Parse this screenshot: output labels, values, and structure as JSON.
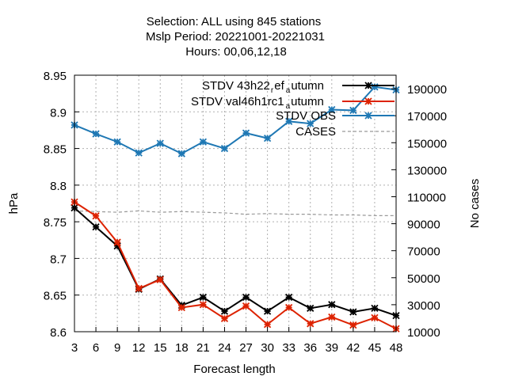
{
  "chart_data": {
    "type": "line",
    "title_lines": [
      "Selection: ALL using   845 stations",
      "Mslp   Period: 20221001-20221031",
      "Hours:  00,06,12,18"
    ],
    "xlabel": "Forecast length",
    "ylabel": "hPa",
    "y2label": "No cases",
    "x": [
      3,
      6,
      9,
      12,
      15,
      18,
      21,
      24,
      27,
      30,
      33,
      36,
      39,
      42,
      45,
      48
    ],
    "xlim": [
      3,
      48
    ],
    "ylim": [
      8.6,
      8.95
    ],
    "y2lim": [
      10000,
      200000
    ],
    "yticks": [
      "8.6",
      "8.65",
      "8.7",
      "8.75",
      "8.8",
      "8.85",
      "8.9",
      "8.95"
    ],
    "y2ticks": [
      "10000",
      "30000",
      "50000",
      "70000",
      "90000",
      "110000",
      "130000",
      "150000",
      "170000",
      "190000"
    ],
    "grid": true,
    "legend_position": "top-right",
    "series": [
      {
        "name": "STDV 43h22_ref_autumn",
        "legend_label": "STDV 43h22",
        "legend_sub1": "r",
        "legend_mid": "ef",
        "legend_sub2": "a",
        "legend_tail": "utumn",
        "color": "#000000",
        "axis": "y",
        "marker": "star",
        "values": [
          8.769,
          8.743,
          8.717,
          8.658,
          8.672,
          8.636,
          8.647,
          8.628,
          8.647,
          8.628,
          8.647,
          8.632,
          8.637,
          8.627,
          8.632,
          8.622
        ]
      },
      {
        "name": "STDV val46h1rc1_autumn",
        "legend_label": "STDV val46h1rc1",
        "legend_sub1": "a",
        "legend_tail": "utumn",
        "color": "#dd2200",
        "axis": "y",
        "marker": "star",
        "values": [
          8.777,
          8.758,
          8.722,
          8.659,
          8.671,
          8.633,
          8.637,
          8.618,
          8.635,
          8.61,
          8.633,
          8.611,
          8.62,
          8.609,
          8.619,
          8.604
        ]
      },
      {
        "name": "STDV OBS",
        "legend_label": "STDV OBS",
        "color": "#1f78b4",
        "axis": "y",
        "marker": "star",
        "values": [
          8.882,
          8.87,
          8.859,
          8.844,
          8.857,
          8.843,
          8.859,
          8.85,
          8.871,
          8.864,
          8.887,
          8.884,
          8.903,
          8.902,
          8.934,
          8.93
        ]
      },
      {
        "name": "CASES",
        "legend_label": "CASES",
        "color": "#999999",
        "axis": "y2",
        "dashed": true,
        "values": [
          99500,
          99000,
          98500,
          99500,
          98500,
          99000,
          98500,
          98000,
          97000,
          97500,
          97000,
          97000,
          96500,
          96500,
          96000,
          96000
        ]
      }
    ]
  }
}
